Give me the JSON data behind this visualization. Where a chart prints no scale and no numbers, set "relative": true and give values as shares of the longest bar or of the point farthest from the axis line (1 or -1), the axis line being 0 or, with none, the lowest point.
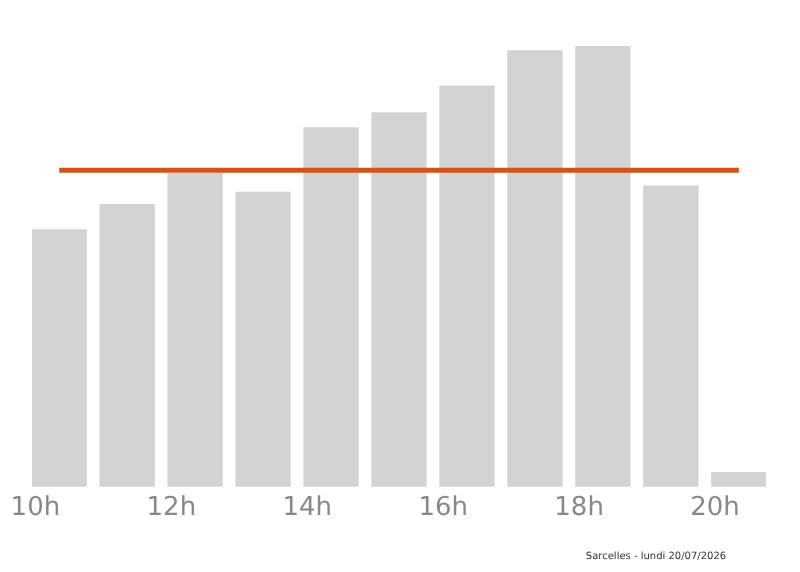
{
  "chart_data": {
    "type": "bar",
    "relative": true,
    "x": [
      10.35,
      11.35,
      12.35,
      13.35,
      14.35,
      15.35,
      16.35,
      17.35,
      18.35,
      19.35,
      20.35
    ],
    "values": [
      0.583,
      0.64,
      0.711,
      0.668,
      0.814,
      0.848,
      0.909,
      0.989,
      1,
      0.682,
      0.032
    ],
    "color": "#d3d3d3",
    "xlim": [
      9.95,
      20.75
    ],
    "xticks": [
      {
        "value": 10,
        "label": "10h"
      },
      {
        "value": 12,
        "label": "12h"
      },
      {
        "value": 14,
        "label": "14h"
      },
      {
        "value": 16,
        "label": "16h"
      },
      {
        "value": 18,
        "label": "18h"
      },
      {
        "value": 20,
        "label": "20h"
      }
    ],
    "ref_lines": [
      {
        "axis": "y",
        "value": 0.718,
        "color": "#d2541a"
      }
    ],
    "annotations": [
      "Sarcelles - lundi 20/07/2026"
    ],
    "grid": false,
    "legend": false
  }
}
